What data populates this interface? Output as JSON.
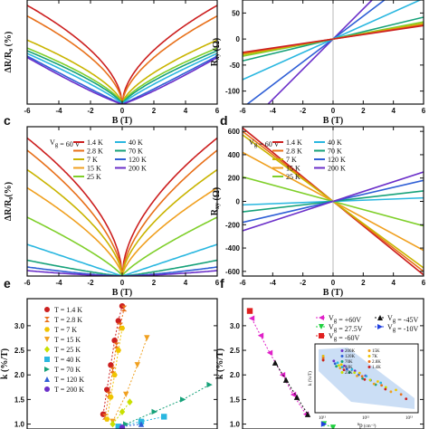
{
  "chart_data": [
    {
      "panel": "a",
      "type": "line",
      "xlabel": "B (T)",
      "ylabel": "ΔR/R₀ (%)",
      "xlim": [
        -6,
        6
      ],
      "xticks": [
        "-6",
        "-4",
        "-2",
        "0",
        "2",
        "4",
        "6"
      ],
      "ylim": [
        0,
        0.78
      ],
      "series": [
        {
          "color": "#cc1f1f",
          "end_value": 0.74,
          "power": 0.55
        },
        {
          "color": "#e8701a",
          "end_value": 0.66,
          "power": 0.58
        },
        {
          "color": "#c9b400",
          "end_value": 0.48,
          "power": 0.65
        },
        {
          "color": "#7fcf2a",
          "end_value": 0.42,
          "power": 0.7
        },
        {
          "color": "#17a27a",
          "end_value": 0.4,
          "power": 0.75
        },
        {
          "color": "#2ab7e0",
          "end_value": 0.38,
          "power": 0.85
        },
        {
          "color": "#2f5fd6",
          "end_value": 0.36,
          "power": 1.05
        },
        {
          "color": "#6b2fc9",
          "end_value": 0.35,
          "power": 1.15
        }
      ]
    },
    {
      "panel": "b",
      "type": "line",
      "xlabel": "B (T)",
      "ylabel": "R_xy (Ω)",
      "xlim": [
        -6,
        6
      ],
      "xticks": [
        "-6",
        "-4",
        "-2",
        "0",
        "2",
        "4",
        "6"
      ],
      "ylim": [
        -125,
        75
      ],
      "yticks": [
        "-100",
        "-50",
        "0",
        "50"
      ],
      "series": [
        {
          "color": "#6b2fc9",
          "slope": 29
        },
        {
          "color": "#2f5fd6",
          "slope": 22
        },
        {
          "color": "#2ab7e0",
          "slope": 13
        },
        {
          "color": "#17a27a",
          "slope": 7
        },
        {
          "color": "#7fcf2a",
          "slope": 5.5
        },
        {
          "color": "#c9b400",
          "slope": 5
        },
        {
          "color": "#e8701a",
          "slope": 4.6
        },
        {
          "color": "#cc1f1f",
          "slope": 4.3
        }
      ]
    },
    {
      "panel": "c",
      "type": "line",
      "annotation": "V_g = 60 V",
      "xlabel": "B (T)",
      "ylabel": "ΔR/R₀(%)",
      "xlim": [
        -6,
        6
      ],
      "xticks": [
        "-6",
        "-4",
        "-2",
        "0",
        "2",
        "4",
        "6"
      ],
      "ylim": [
        0,
        3.3
      ],
      "series": [
        {
          "name": "1.4 K",
          "color": "#cc1f1f",
          "end_value": 3.05,
          "power": 0.55
        },
        {
          "name": "2.8 K",
          "color": "#e8701a",
          "end_value": 2.78,
          "power": 0.6
        },
        {
          "name": "7 K",
          "color": "#c9b400",
          "end_value": 2.35,
          "power": 0.62
        },
        {
          "name": "15 K",
          "color": "#f0a020",
          "end_value": 1.95,
          "power": 0.68
        },
        {
          "name": "25 K",
          "color": "#7fcf2a",
          "end_value": 1.3,
          "power": 0.8
        },
        {
          "name": "40 K",
          "color": "#2ab7e0",
          "end_value": 0.7,
          "power": 1.0
        },
        {
          "name": "70 K",
          "color": "#17a27a",
          "end_value": 0.35,
          "power": 1.2
        },
        {
          "name": "120 K",
          "color": "#2f5fd6",
          "end_value": 0.2,
          "power": 1.4
        },
        {
          "name": "200 K",
          "color": "#6b2fc9",
          "end_value": 0.12,
          "power": 1.5
        }
      ]
    },
    {
      "panel": "d",
      "type": "line",
      "annotation": "V_g = 60 V",
      "xlabel": "B (T)",
      "ylabel": "R_xy (Ω)",
      "xlim": [
        -6,
        6
      ],
      "xticks": [
        "-6",
        "-4",
        "-2",
        "0",
        "2",
        "4",
        "6"
      ],
      "ylim": [
        -640,
        640
      ],
      "yticks": [
        "-600",
        "-400",
        "-200",
        "0",
        "200",
        "400",
        "600"
      ],
      "series": [
        {
          "name": "1.4 K",
          "color": "#cc1f1f",
          "slope": -105
        },
        {
          "name": "2.8 K",
          "color": "#e8701a",
          "slope": -100
        },
        {
          "name": "7 K",
          "color": "#c9b400",
          "slope": -95
        },
        {
          "name": "15 K",
          "color": "#f0a020",
          "slope": -70
        },
        {
          "name": "25 K",
          "color": "#7fcf2a",
          "slope": -35
        },
        {
          "name": "40 K",
          "color": "#2ab7e0",
          "slope": 5
        },
        {
          "name": "70 K",
          "color": "#17a27a",
          "slope": 15
        },
        {
          "name": "120 K",
          "color": "#2f5fd6",
          "slope": 30
        },
        {
          "name": "200 K",
          "color": "#6b2fc9",
          "slope": 42
        }
      ]
    },
    {
      "panel": "e",
      "type": "scatter",
      "ylabel": "k (%/T)",
      "ylim": [
        0.9,
        3.55
      ],
      "yticks": [
        "1.0",
        "1.5",
        "2.0",
        "2.5",
        "3.0"
      ],
      "series": [
        {
          "name": "T = 1.4 K",
          "marker": "circle",
          "color": "#cc1f1f",
          "x": [
            0.4,
            0.42,
            0.44,
            0.46,
            0.48,
            0.5
          ],
          "y": [
            1.2,
            1.7,
            2.2,
            2.7,
            3.1,
            3.4
          ]
        },
        {
          "name": "T = 2.8 K",
          "marker": "hourglass",
          "color": "#e8701a",
          "x": [
            0.41,
            0.43,
            0.45,
            0.47,
            0.49,
            0.51
          ],
          "y": [
            1.15,
            1.6,
            2.1,
            2.6,
            3.0,
            3.35
          ]
        },
        {
          "name": "T = 7 K",
          "marker": "hexagon",
          "color": "#f0c400",
          "x": [
            0.42,
            0.44,
            0.46,
            0.48,
            0.5
          ],
          "y": [
            1.1,
            1.55,
            2.0,
            2.5,
            2.95
          ]
        },
        {
          "name": "T = 15 K",
          "marker": "triangle-down",
          "color": "#f0a020",
          "x": [
            0.45,
            0.52,
            0.58,
            0.63
          ],
          "y": [
            1.05,
            1.6,
            2.2,
            2.75
          ]
        },
        {
          "name": "T = 25 K",
          "marker": "diamond",
          "color": "#c9e000",
          "x": [
            0.45,
            0.5,
            0.54
          ],
          "y": [
            1.0,
            1.25,
            1.45
          ]
        },
        {
          "name": "T = 40 K",
          "marker": "square",
          "color": "#2ab7e0",
          "x": [
            0.48,
            0.6,
            0.72
          ],
          "y": [
            0.95,
            1.05,
            1.15
          ]
        },
        {
          "name": "T = 70 K",
          "marker": "triangle-right",
          "color": "#17a27a",
          "x": [
            0.52,
            0.67,
            0.82,
            0.96
          ],
          "y": [
            1.0,
            1.25,
            1.5,
            1.8
          ]
        },
        {
          "name": "T = 120 K",
          "marker": "triangle-up",
          "color": "#2f5fd6",
          "x": [
            0.5,
            0.6
          ],
          "y": [
            0.95,
            1.0
          ]
        },
        {
          "name": "T = 200 K",
          "marker": "circle",
          "color": "#6b2fc9",
          "x": [
            0.5
          ],
          "y": [
            0.93
          ]
        }
      ]
    },
    {
      "panel": "f",
      "type": "scatter",
      "ylabel": "k (%/T)",
      "ylim": [
        0.9,
        3.55
      ],
      "yticks": [
        "1.0",
        "1.5",
        "2.0",
        "2.5",
        "3.0"
      ],
      "series": [
        {
          "name": "V_g = +60V",
          "marker": "triangle-left",
          "color": "#e020c8",
          "x": [
            0.05,
            0.1,
            0.15,
            0.22,
            0.28,
            0.35
          ],
          "y": [
            3.15,
            2.8,
            2.45,
            2.0,
            1.6,
            1.2
          ]
        },
        {
          "name": "V_g = 27.5V",
          "marker": "triangle-down",
          "color": "#20d040",
          "x": [
            0.45,
            0.5
          ],
          "y": [
            1.0,
            0.93
          ]
        },
        {
          "name": "V_g = -60V",
          "marker": "square",
          "color": "#e02020",
          "x": [
            0.04
          ],
          "y": [
            3.3
          ]
        },
        {
          "name": "V_g = -45V",
          "marker": "triangle-up",
          "color": "#111111",
          "x": [
            0.18,
            0.24,
            0.3,
            0.36
          ],
          "y": [
            2.25,
            1.9,
            1.55,
            1.2
          ]
        },
        {
          "name": "V_g = -10V",
          "marker": "triangle-right",
          "color": "#2040e0",
          "x": [
            0.45
          ],
          "y": [
            1.0
          ]
        }
      ],
      "inset": {
        "xlabel": "n_p (cm⁻²)",
        "ylabel": "k (%/T)",
        "xticks": [
          "10¹¹",
          "10¹²",
          "10¹³"
        ],
        "legend": [
          "200K",
          "120K",
          "70K",
          "40K",
          "25K",
          "15K",
          "7K",
          "2.8K",
          "1.4K"
        ],
        "colors": [
          "#6b2fc9",
          "#2f5fd6",
          "#17a27a",
          "#2ab7e0",
          "#c9e000",
          "#f0a020",
          "#f0c400",
          "#e8701a",
          "#cc1f1f"
        ]
      }
    }
  ]
}
